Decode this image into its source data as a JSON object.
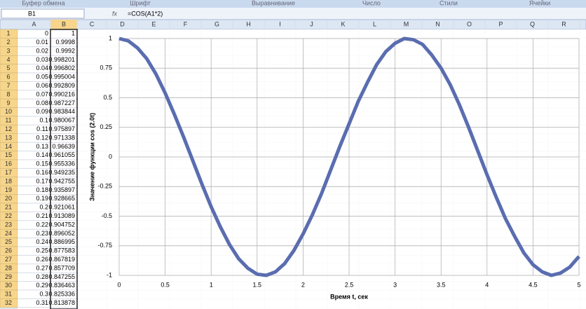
{
  "ribbon_groups": [
    "Буфер обмена",
    "Шрифт",
    "Выравнивание",
    "Число",
    "Стили",
    "Ячейки"
  ],
  "name_box": "B1",
  "formula": "=COS(A1*2)",
  "columns": [
    "A",
    "B",
    "C",
    "D",
    "E",
    "F",
    "G",
    "H",
    "I",
    "J",
    "K",
    "L",
    "M",
    "N",
    "O",
    "P",
    "Q",
    "R"
  ],
  "rows": [
    {
      "n": 1,
      "a": 0,
      "b": 1
    },
    {
      "n": 2,
      "a": 0.01,
      "b": 0.9998
    },
    {
      "n": 3,
      "a": 0.02,
      "b": 0.9992
    },
    {
      "n": 4,
      "a": 0.03,
      "b": 0.998201
    },
    {
      "n": 5,
      "a": 0.04,
      "b": 0.996802
    },
    {
      "n": 6,
      "a": 0.05,
      "b": 0.995004
    },
    {
      "n": 7,
      "a": 0.06,
      "b": 0.992809
    },
    {
      "n": 8,
      "a": 0.07,
      "b": 0.990216
    },
    {
      "n": 9,
      "a": 0.08,
      "b": 0.987227
    },
    {
      "n": 10,
      "a": 0.09,
      "b": 0.983844
    },
    {
      "n": 11,
      "a": 0.1,
      "b": 0.980067
    },
    {
      "n": 12,
      "a": 0.11,
      "b": 0.975897
    },
    {
      "n": 13,
      "a": 0.12,
      "b": 0.971338
    },
    {
      "n": 14,
      "a": 0.13,
      "b": 0.96639
    },
    {
      "n": 15,
      "a": 0.14,
      "b": 0.961055
    },
    {
      "n": 16,
      "a": 0.15,
      "b": 0.955336
    },
    {
      "n": 17,
      "a": 0.16,
      "b": 0.949235
    },
    {
      "n": 18,
      "a": 0.17,
      "b": 0.942755
    },
    {
      "n": 19,
      "a": 0.18,
      "b": 0.935897
    },
    {
      "n": 20,
      "a": 0.19,
      "b": 0.928665
    },
    {
      "n": 21,
      "a": 0.2,
      "b": 0.921061
    },
    {
      "n": 22,
      "a": 0.21,
      "b": 0.913089
    },
    {
      "n": 23,
      "a": 0.22,
      "b": 0.904752
    },
    {
      "n": 24,
      "a": 0.23,
      "b": 0.896052
    },
    {
      "n": 25,
      "a": 0.24,
      "b": 0.886995
    },
    {
      "n": 26,
      "a": 0.25,
      "b": 0.877583
    },
    {
      "n": 27,
      "a": 0.26,
      "b": 0.867819
    },
    {
      "n": 28,
      "a": 0.27,
      "b": 0.857709
    },
    {
      "n": 29,
      "a": 0.28,
      "b": 0.847255
    },
    {
      "n": 30,
      "a": 0.29,
      "b": 0.836463
    },
    {
      "n": 31,
      "a": 0.3,
      "b": 0.825336
    },
    {
      "n": 32,
      "a": 0.31,
      "b": 0.813878
    }
  ],
  "chart_data": {
    "type": "line",
    "x_label": "Время t, сек",
    "y_label": "Значение функции cos (2.0t)",
    "x": [
      0,
      0.1,
      0.2,
      0.3,
      0.4,
      0.5,
      0.6,
      0.7,
      0.8,
      0.9,
      1,
      1.1,
      1.2,
      1.3,
      1.4,
      1.5,
      1.6,
      1.7,
      1.8,
      1.9,
      2,
      2.1,
      2.2,
      2.3,
      2.4,
      2.5,
      2.6,
      2.7,
      2.8,
      2.9,
      3,
      3.1,
      3.2,
      3.3,
      3.4,
      3.5,
      3.6,
      3.7,
      3.8,
      3.9,
      4,
      4.1,
      4.2,
      4.3,
      4.4,
      4.5,
      4.6,
      4.7,
      4.8,
      4.9,
      5
    ],
    "series": [
      {
        "color": "#5a6db0",
        "values": [
          1,
          0.98,
          0.92,
          0.83,
          0.7,
          0.54,
          0.36,
          0.17,
          -0.03,
          -0.23,
          -0.42,
          -0.59,
          -0.74,
          -0.86,
          -0.94,
          -0.99,
          -1,
          -0.97,
          -0.9,
          -0.79,
          -0.65,
          -0.49,
          -0.31,
          -0.11,
          0.09,
          0.28,
          0.47,
          0.63,
          0.78,
          0.89,
          0.96,
          1,
          0.99,
          0.95,
          0.86,
          0.75,
          0.61,
          0.44,
          0.25,
          0.05,
          -0.15,
          -0.34,
          -0.52,
          -0.67,
          -0.81,
          -0.91,
          -0.97,
          -1,
          -0.98,
          -0.93,
          -0.84
        ]
      }
    ],
    "xlim": [
      0,
      5
    ],
    "xticks": [
      0,
      0.5,
      1,
      1.5,
      2,
      2.5,
      3,
      3.5,
      4,
      4.5,
      5
    ],
    "ylim": [
      -1,
      1
    ],
    "yticks": [
      -1,
      -0.75,
      -0.5,
      -0.25,
      0,
      0.25,
      0.5,
      0.75,
      1
    ],
    "grid": true
  }
}
